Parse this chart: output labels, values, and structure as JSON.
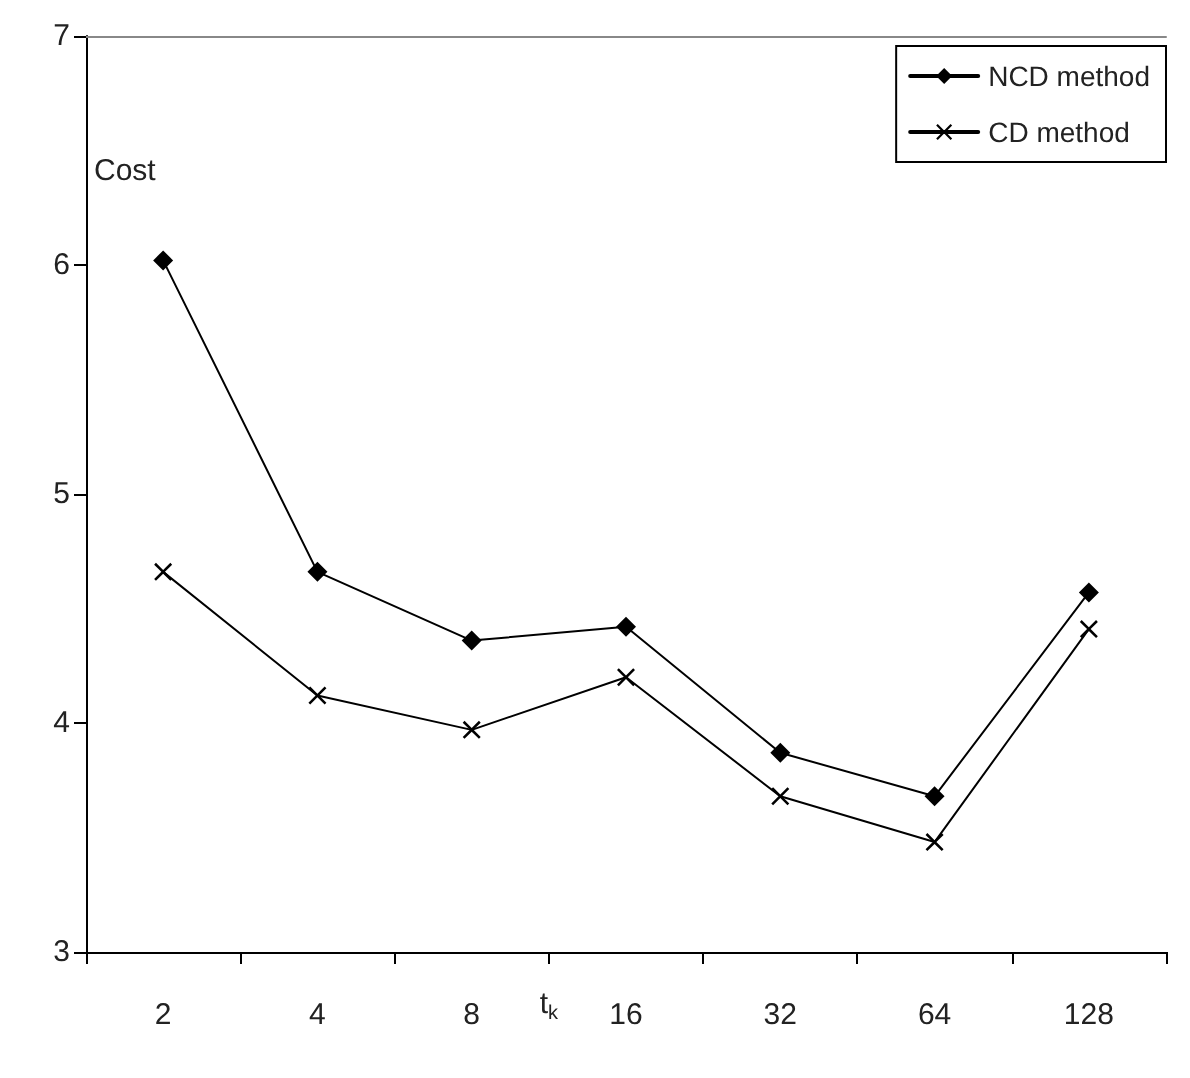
{
  "chart_data": {
    "type": "line",
    "xlabel": "t$_{k}$",
    "ylabel": "Cost",
    "categories": [
      "2",
      "4",
      "8",
      "16",
      "32",
      "64",
      "128"
    ],
    "ylim": [
      3,
      7
    ],
    "yticks": [
      3,
      4,
      5,
      6,
      7
    ],
    "grid": false,
    "legend": "top right",
    "line_style": "solid",
    "series": [
      {
        "name": "NCD method",
        "color": "#000000",
        "marker": "diamond",
        "values": [
          6.02,
          4.66,
          4.36,
          4.42,
          3.87,
          3.68,
          4.57
        ]
      },
      {
        "name": "CD method",
        "color": "#000000",
        "marker": "cross",
        "values": [
          4.66,
          4.12,
          3.97,
          4.2,
          3.68,
          3.48,
          4.41
        ]
      }
    ]
  }
}
